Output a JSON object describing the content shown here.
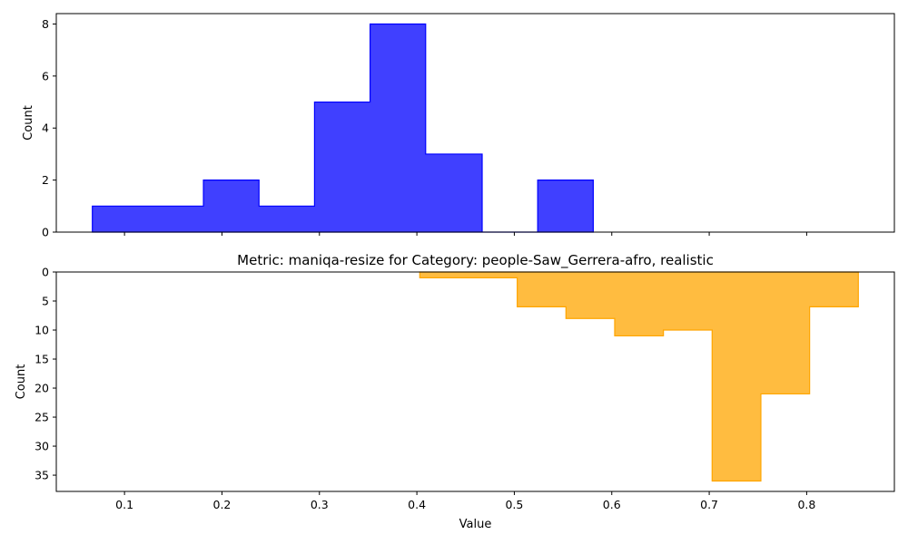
{
  "chart_data": [
    {
      "type": "bar",
      "subtype": "histogram-step-filled",
      "title": "",
      "xlabel": "",
      "ylabel": "Count",
      "xlim": [
        0.03,
        0.89
      ],
      "ylim": [
        0,
        8.4
      ],
      "x_ticks": [
        "0.1",
        "0.2",
        "0.3",
        "0.4",
        "0.5",
        "0.6",
        "0.7",
        "0.8"
      ],
      "x_tick_labels_shown": false,
      "y_ticks": [
        "0",
        "2",
        "4",
        "6",
        "8"
      ],
      "inverted_y": false,
      "color": "#0000ff",
      "bin_edges": [
        0.067,
        0.124,
        0.181,
        0.238,
        0.295,
        0.352,
        0.409,
        0.467,
        0.524,
        0.581
      ],
      "counts": [
        1,
        1,
        2,
        1,
        5,
        8,
        3,
        0,
        2
      ]
    },
    {
      "type": "bar",
      "subtype": "histogram-step-filled",
      "title": "Metric: maniqa-resize for Category: people-Saw_Gerrera-afro, realistic",
      "xlabel": "Value",
      "ylabel": "Count",
      "xlim": [
        0.03,
        0.89
      ],
      "ylim": [
        37.8,
        0
      ],
      "x_ticks": [
        "0.1",
        "0.2",
        "0.3",
        "0.4",
        "0.5",
        "0.6",
        "0.7",
        "0.8"
      ],
      "x_tick_labels_shown": true,
      "y_ticks": [
        "0",
        "5",
        "10",
        "15",
        "20",
        "25",
        "30",
        "35"
      ],
      "inverted_y": true,
      "color": "#ffa500",
      "bin_edges": [
        0.403,
        0.453,
        0.503,
        0.553,
        0.603,
        0.653,
        0.703,
        0.753,
        0.803,
        0.853
      ],
      "counts": [
        1,
        1,
        6,
        8,
        11,
        10,
        36,
        21,
        6
      ]
    }
  ]
}
